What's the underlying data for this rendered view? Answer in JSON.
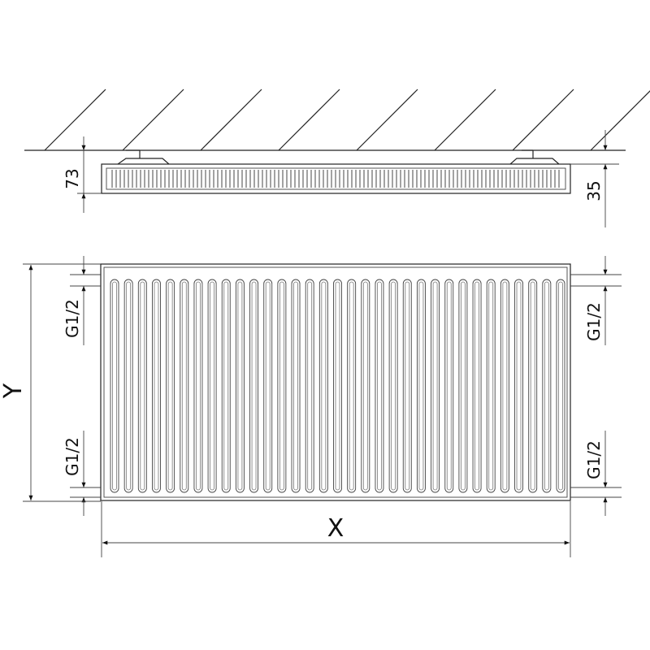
{
  "diagram": {
    "side_view": {
      "depth_label": "73",
      "wall_offset_label": "35"
    },
    "front_view": {
      "height_label": "Y",
      "width_label": "X",
      "connections": [
        {
          "side": "left",
          "position": "top",
          "label": "G1/2"
        },
        {
          "side": "left",
          "position": "bottom",
          "label": "G1/2"
        },
        {
          "side": "right",
          "position": "top",
          "label": "G1/2"
        },
        {
          "side": "right",
          "position": "bottom",
          "label": "G1/2"
        }
      ],
      "rib_count": 33
    },
    "line_color": "#222222"
  }
}
